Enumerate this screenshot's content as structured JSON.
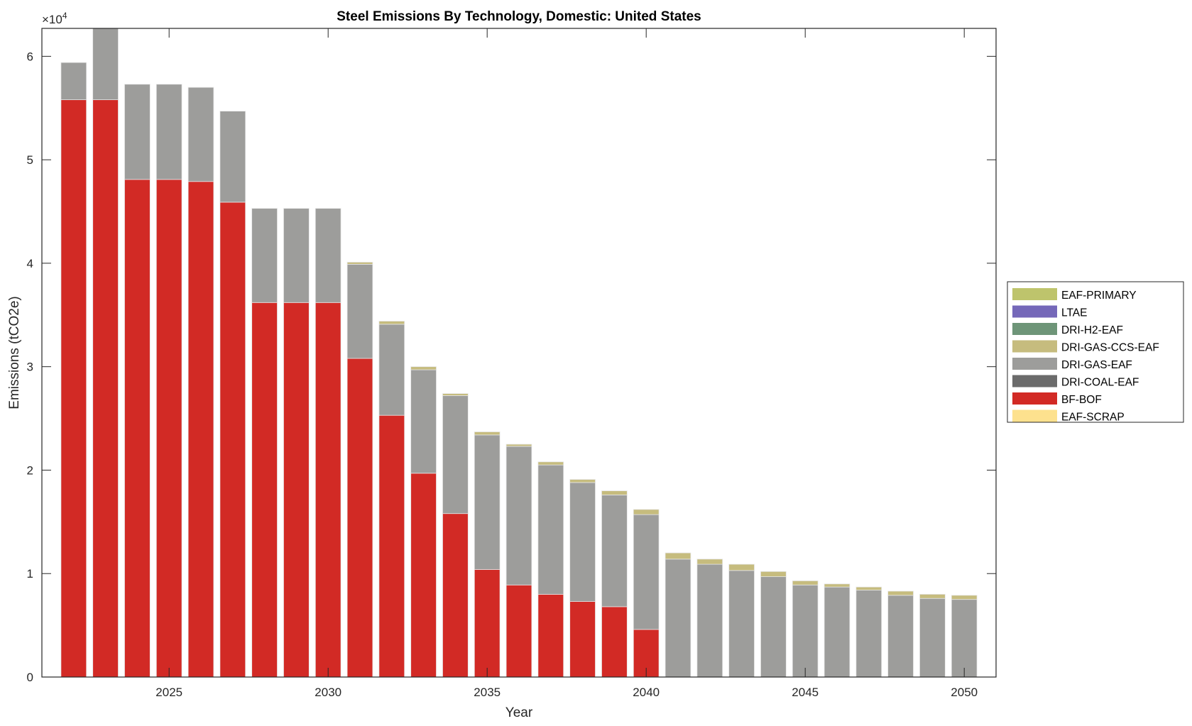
{
  "chart_data": {
    "type": "bar",
    "stacked": true,
    "title": "Steel Emissions By Technology, Domestic: United States",
    "xlabel": "Year",
    "ylabel": "Emissions (tCO2e)",
    "y_exponent_label": "×10",
    "y_exponent": "4",
    "xlim": [
      2021,
      2051
    ],
    "ylim": [
      0,
      62700
    ],
    "xticks": [
      2025,
      2030,
      2035,
      2040,
      2045,
      2050
    ],
    "yticks": [
      0,
      10000,
      20000,
      30000,
      40000,
      50000,
      60000
    ],
    "ytick_labels": [
      "0",
      "1",
      "2",
      "3",
      "4",
      "5",
      "6"
    ],
    "legend_placement": "right-outside",
    "categories": [
      2022,
      2023,
      2024,
      2025,
      2026,
      2027,
      2028,
      2029,
      2030,
      2031,
      2032,
      2033,
      2034,
      2035,
      2036,
      2037,
      2038,
      2039,
      2040,
      2041,
      2042,
      2043,
      2044,
      2045,
      2046,
      2047,
      2048,
      2049,
      2050
    ],
    "series": [
      {
        "name": "EAF-SCRAP",
        "color": "#FDE18E",
        "values": [
          0,
          0,
          0,
          0,
          0,
          0,
          0,
          0,
          0,
          0,
          0,
          0,
          0,
          0,
          0,
          0,
          0,
          0,
          0,
          0,
          0,
          0,
          0,
          0,
          0,
          0,
          0,
          0,
          0
        ]
      },
      {
        "name": "BF-BOF",
        "color": "#D22A25",
        "values": [
          55800,
          55800,
          48100,
          48100,
          47900,
          45900,
          36200,
          36200,
          36200,
          30800,
          25300,
          19700,
          15800,
          10400,
          8900,
          8000,
          7300,
          6800,
          4600,
          0,
          0,
          0,
          0,
          0,
          0,
          0,
          0,
          0,
          0
        ]
      },
      {
        "name": "DRI-COAL-EAF",
        "color": "#6B6B6B",
        "values": [
          0,
          0,
          0,
          0,
          0,
          0,
          0,
          0,
          0,
          0,
          0,
          0,
          0,
          0,
          0,
          0,
          0,
          0,
          0,
          0,
          0,
          0,
          0,
          0,
          0,
          0,
          0,
          0,
          0
        ]
      },
      {
        "name": "DRI-GAS-EAF",
        "color": "#9D9D9B",
        "values": [
          3600,
          7200,
          9200,
          9200,
          9100,
          8800,
          9100,
          9100,
          9100,
          9100,
          8800,
          10000,
          11400,
          13000,
          13400,
          12500,
          11500,
          10800,
          11100,
          11400,
          10900,
          10300,
          9700,
          8900,
          8700,
          8400,
          7900,
          7600,
          7500
        ]
      },
      {
        "name": "DRI-GAS-CCS-EAF",
        "color": "#C6BC7E",
        "values": [
          0,
          0,
          0,
          0,
          0,
          0,
          0,
          0,
          0,
          200,
          300,
          300,
          200,
          300,
          200,
          300,
          300,
          400,
          500,
          600,
          500,
          600,
          500,
          400,
          300,
          300,
          400,
          400,
          400
        ]
      },
      {
        "name": "DRI-H2-EAF",
        "color": "#6E9578",
        "values": [
          0,
          0,
          0,
          0,
          0,
          0,
          0,
          0,
          0,
          0,
          0,
          0,
          0,
          0,
          0,
          0,
          0,
          0,
          0,
          0,
          0,
          0,
          0,
          0,
          0,
          0,
          0,
          0,
          0
        ]
      },
      {
        "name": "LTAE",
        "color": "#7568B9",
        "values": [
          0,
          0,
          0,
          0,
          0,
          0,
          0,
          0,
          0,
          0,
          0,
          0,
          0,
          0,
          0,
          0,
          0,
          0,
          0,
          0,
          0,
          0,
          0,
          0,
          0,
          0,
          0,
          0,
          0
        ]
      },
      {
        "name": "EAF-PRIMARY",
        "color": "#BEC46C",
        "values": [
          0,
          0,
          0,
          0,
          0,
          0,
          0,
          0,
          0,
          0,
          0,
          0,
          0,
          0,
          0,
          0,
          0,
          0,
          0,
          0,
          0,
          0,
          0,
          0,
          0,
          0,
          0,
          0,
          0
        ]
      }
    ]
  }
}
